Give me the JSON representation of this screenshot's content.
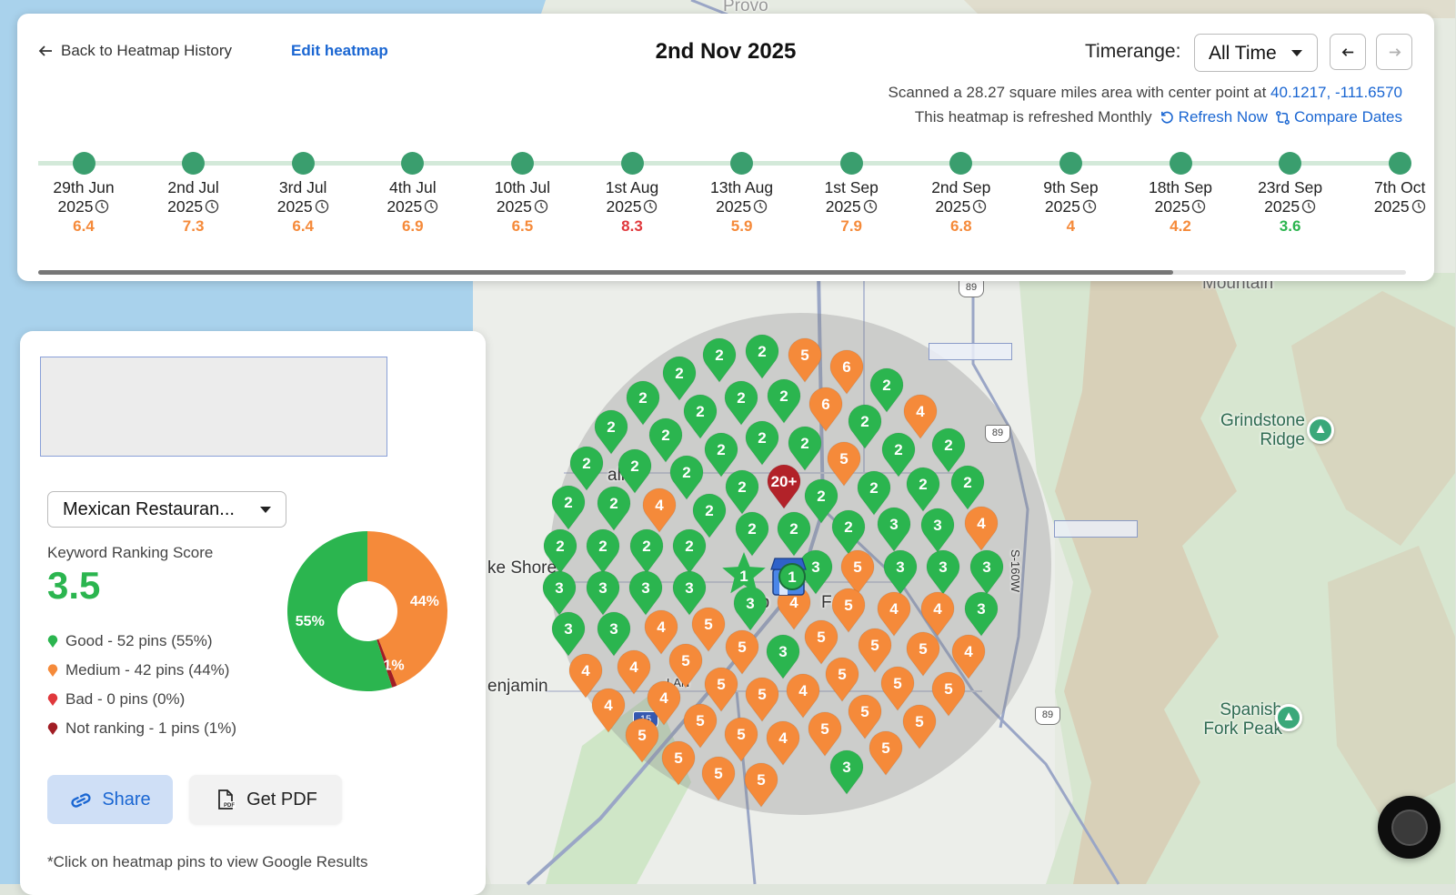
{
  "header": {
    "back_label": "Back to Heatmap History",
    "edit_label": "Edit heatmap",
    "title": "2nd Nov 2025",
    "timerange_label": "Timerange:",
    "timerange_value": "All Time",
    "scan_prefix": "Scanned a 28.27 square miles area with center point at",
    "center_coords": "40.1217, -111.6570",
    "refresh_text": "This heatmap is refreshed Monthly",
    "refresh_now": "Refresh Now",
    "compare_dates": "Compare Dates"
  },
  "timeline": [
    {
      "day": "29th Jun",
      "year": "2025",
      "score": "6.4",
      "color": "#f58a3a"
    },
    {
      "day": "2nd Jul",
      "year": "2025",
      "score": "7.3",
      "color": "#f58a3a"
    },
    {
      "day": "3rd Jul",
      "year": "2025",
      "score": "6.4",
      "color": "#f58a3a"
    },
    {
      "day": "4th Jul",
      "year": "2025",
      "score": "6.9",
      "color": "#f58a3a"
    },
    {
      "day": "10th Jul",
      "year": "2025",
      "score": "6.5",
      "color": "#f58a3a"
    },
    {
      "day": "1st Aug",
      "year": "2025",
      "score": "8.3",
      "color": "#e0383c"
    },
    {
      "day": "13th Aug",
      "year": "2025",
      "score": "5.9",
      "color": "#f58a3a"
    },
    {
      "day": "1st Sep",
      "year": "2025",
      "score": "7.9",
      "color": "#f58a3a"
    },
    {
      "day": "2nd Sep",
      "year": "2025",
      "score": "6.8",
      "color": "#f58a3a"
    },
    {
      "day": "9th Sep",
      "year": "2025",
      "score": "4",
      "color": "#f58a3a"
    },
    {
      "day": "18th Sep",
      "year": "2025",
      "score": "4.2",
      "color": "#f58a3a"
    },
    {
      "day": "23rd Sep",
      "year": "2025",
      "score": "3.6",
      "color": "#2bb54f"
    },
    {
      "day": "7th Oct",
      "year": "2025",
      "score": "",
      "color": "#f58a3a"
    }
  ],
  "timeline_scroll_fraction": 0.83,
  "report": {
    "keyword": "Mexican Restauran...",
    "score_label": "Keyword Ranking Score",
    "score": "3.5",
    "legend": [
      {
        "label": "Good - 52 pins (55%)",
        "color": "#2bb54f"
      },
      {
        "label": "Medium - 42 pins (44%)",
        "color": "#f58a3a"
      },
      {
        "label": "Bad - 0 pins (0%)",
        "color": "#e0383c"
      },
      {
        "label": "Not ranking - 1 pins (1%)",
        "color": "#a11d24"
      }
    ],
    "share_label": "Share",
    "pdf_label": "Get PDF",
    "hint": "*Click on heatmap pins to view Google Results"
  },
  "chart_data": {
    "type": "pie",
    "title": "Keyword Ranking Score",
    "categories": [
      "Medium",
      "Not ranking",
      "Good"
    ],
    "values": [
      44,
      1,
      55
    ],
    "labels": [
      "44%",
      "1%",
      "55%"
    ],
    "colors": [
      "#f58a3a",
      "#a11d24",
      "#2bb54f"
    ]
  },
  "map": {
    "labels": [
      "Provo",
      "Mountain",
      "Grindstone Ridge",
      "Spanish Fork Peak",
      "ke Shore",
      "enjamin",
      "alm",
      "Sp",
      "Fork",
      "LAN",
      "S-160W"
    ],
    "highways": [
      "89",
      "89",
      "89",
      "15"
    ],
    "pin_colors": {
      "good": "#2bb54f",
      "medium": "#f58a3a",
      "not_ranking": "#b22229"
    },
    "business_pin_rank": "1",
    "pins": [
      {
        "rank": "2",
        "status": "good"
      },
      {
        "rank": "2",
        "status": "good"
      },
      {
        "rank": "5",
        "status": "medium"
      },
      {
        "rank": "2",
        "status": "good"
      },
      {
        "rank": "6",
        "status": "medium"
      },
      {
        "rank": "2",
        "status": "good"
      },
      {
        "rank": "2",
        "status": "good"
      },
      {
        "rank": "2",
        "status": "good"
      },
      {
        "rank": "2",
        "status": "good"
      },
      {
        "rank": "6",
        "status": "medium"
      },
      {
        "rank": "2",
        "status": "good"
      },
      {
        "rank": "2",
        "status": "good"
      },
      {
        "rank": "2",
        "status": "good"
      },
      {
        "rank": "2",
        "status": "good"
      },
      {
        "rank": "4",
        "status": "medium"
      },
      {
        "rank": "2",
        "status": "good"
      },
      {
        "rank": "2",
        "status": "good"
      },
      {
        "rank": "2",
        "status": "good"
      },
      {
        "rank": "2",
        "status": "good"
      },
      {
        "rank": "2",
        "status": "good"
      },
      {
        "rank": "2",
        "status": "good"
      },
      {
        "rank": "5",
        "status": "medium"
      },
      {
        "rank": "2",
        "status": "good"
      },
      {
        "rank": "2",
        "status": "good"
      },
      {
        "rank": "2",
        "status": "good"
      },
      {
        "rank": "20+",
        "status": "not_ranking"
      },
      {
        "rank": "2",
        "status": "good"
      },
      {
        "rank": "2",
        "status": "good"
      },
      {
        "rank": "2",
        "status": "good"
      },
      {
        "rank": "4",
        "status": "medium"
      },
      {
        "rank": "2",
        "status": "good"
      },
      {
        "rank": "2",
        "status": "good"
      },
      {
        "rank": "2",
        "status": "good"
      },
      {
        "rank": "2",
        "status": "good"
      },
      {
        "rank": "2",
        "status": "good"
      },
      {
        "rank": "2",
        "status": "good"
      },
      {
        "rank": "2",
        "status": "good"
      },
      {
        "rank": "3",
        "status": "good"
      },
      {
        "rank": "3",
        "status": "good"
      },
      {
        "rank": "4",
        "status": "medium"
      },
      {
        "rank": "2",
        "status": "good"
      },
      {
        "rank": "2",
        "status": "good"
      },
      {
        "rank": "2",
        "status": "good"
      },
      {
        "rank": "2",
        "status": "good"
      },
      {
        "rank": "3",
        "status": "good"
      },
      {
        "rank": "5",
        "status": "medium"
      },
      {
        "rank": "3",
        "status": "good"
      },
      {
        "rank": "3",
        "status": "good"
      },
      {
        "rank": "3",
        "status": "good"
      },
      {
        "rank": "3",
        "status": "good"
      },
      {
        "rank": "3",
        "status": "good"
      },
      {
        "rank": "3",
        "status": "good"
      },
      {
        "rank": "3",
        "status": "good"
      },
      {
        "rank": "4",
        "status": "medium"
      },
      {
        "rank": "5",
        "status": "medium"
      },
      {
        "rank": "4",
        "status": "medium"
      },
      {
        "rank": "4",
        "status": "medium"
      },
      {
        "rank": "3",
        "status": "good"
      },
      {
        "rank": "3",
        "status": "good"
      },
      {
        "rank": "3",
        "status": "good"
      },
      {
        "rank": "3",
        "status": "good"
      },
      {
        "rank": "4",
        "status": "medium"
      },
      {
        "rank": "5",
        "status": "medium"
      },
      {
        "rank": "5",
        "status": "medium"
      },
      {
        "rank": "5",
        "status": "medium"
      },
      {
        "rank": "5",
        "status": "medium"
      },
      {
        "rank": "3",
        "status": "good"
      },
      {
        "rank": "5",
        "status": "medium"
      },
      {
        "rank": "4",
        "status": "medium"
      },
      {
        "rank": "4",
        "status": "medium"
      },
      {
        "rank": "4",
        "status": "medium"
      },
      {
        "rank": "5",
        "status": "medium"
      },
      {
        "rank": "5",
        "status": "medium"
      },
      {
        "rank": "5",
        "status": "medium"
      },
      {
        "rank": "5",
        "status": "medium"
      },
      {
        "rank": "5",
        "status": "medium"
      },
      {
        "rank": "5",
        "status": "medium"
      },
      {
        "rank": "4",
        "status": "medium"
      },
      {
        "rank": "4",
        "status": "medium"
      },
      {
        "rank": "4",
        "status": "medium"
      },
      {
        "rank": "5",
        "status": "medium"
      },
      {
        "rank": "5",
        "status": "medium"
      },
      {
        "rank": "5",
        "status": "medium"
      },
      {
        "rank": "5",
        "status": "medium"
      },
      {
        "rank": "5",
        "status": "medium"
      },
      {
        "rank": "4",
        "status": "medium"
      },
      {
        "rank": "5",
        "status": "medium"
      },
      {
        "rank": "5",
        "status": "medium"
      },
      {
        "rank": "5",
        "status": "medium"
      },
      {
        "rank": "5",
        "status": "medium"
      },
      {
        "rank": "5",
        "status": "medium"
      },
      {
        "rank": "1",
        "status": "good"
      },
      {
        "rank": "3",
        "status": "good"
      },
      {
        "rank": "4",
        "status": "medium"
      }
    ]
  }
}
